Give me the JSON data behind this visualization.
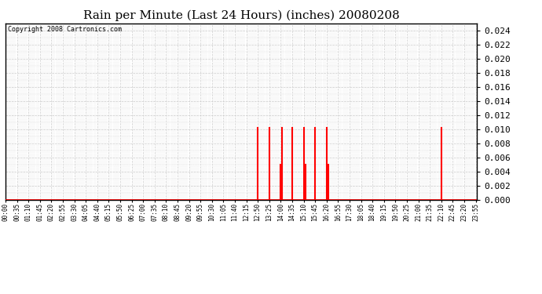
{
  "title": "Rain per Minute (Last 24 Hours) (inches) 20080208",
  "copyright_text": "Copyright 2008 Cartronics.com",
  "ylim": [
    0.0,
    0.025
  ],
  "yticks": [
    0.0,
    0.002,
    0.004,
    0.006,
    0.008,
    0.01,
    0.012,
    0.014,
    0.016,
    0.018,
    0.02,
    0.022,
    0.024
  ],
  "background_color": "#ffffff",
  "plot_bg_color": "#ffffff",
  "grid_major_color": "#cccccc",
  "grid_minor_color": "#dddddd",
  "line_color": "#ff0000",
  "title_fontsize": 11,
  "spike_times": [
    "12:50",
    "13:25",
    "14:00",
    "14:05",
    "14:35",
    "15:10",
    "15:15",
    "15:45",
    "16:20",
    "16:25",
    "22:10"
  ],
  "spike_values": [
    0.0102,
    0.0102,
    0.005,
    0.0102,
    0.0102,
    0.0102,
    0.005,
    0.0102,
    0.0102,
    0.005,
    0.0102
  ],
  "total_minutes": 1440,
  "xtick_step": 35
}
